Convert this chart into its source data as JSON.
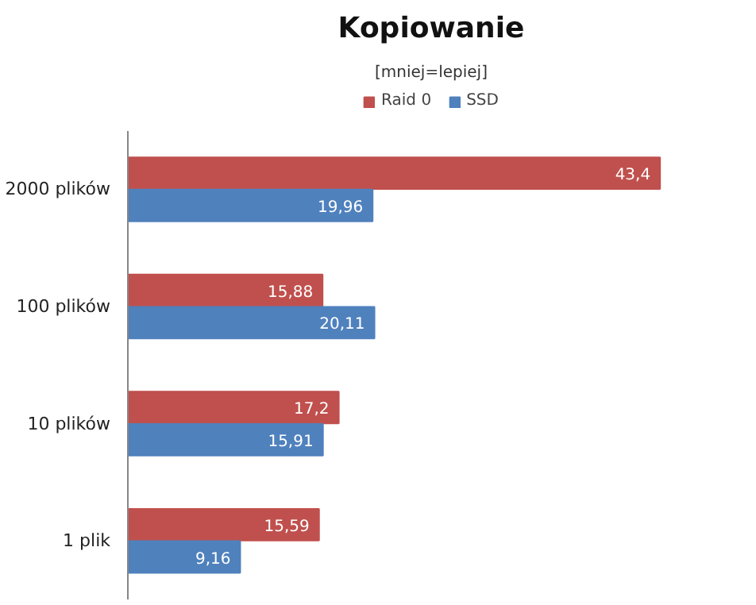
{
  "chart_data": {
    "type": "bar",
    "orientation": "horizontal",
    "title": "Kopiowanie",
    "subtitle": "[mniej=lepiej]",
    "categories": [
      "2000 plików",
      "100 plików",
      "10 plików",
      "1 plik"
    ],
    "series": [
      {
        "name": "Raid 0",
        "color": "#c0504d",
        "values": [
          43.4,
          15.88,
          17.2,
          15.59
        ],
        "value_labels": [
          "43,4",
          "15,88",
          "17,2",
          "15,59"
        ]
      },
      {
        "name": "SSD",
        "color": "#4f81bd",
        "values": [
          19.96,
          20.11,
          15.91,
          9.16
        ],
        "value_labels": [
          "19,96",
          "20,11",
          "15,91",
          "9,16"
        ]
      }
    ],
    "legend": "top"
  }
}
